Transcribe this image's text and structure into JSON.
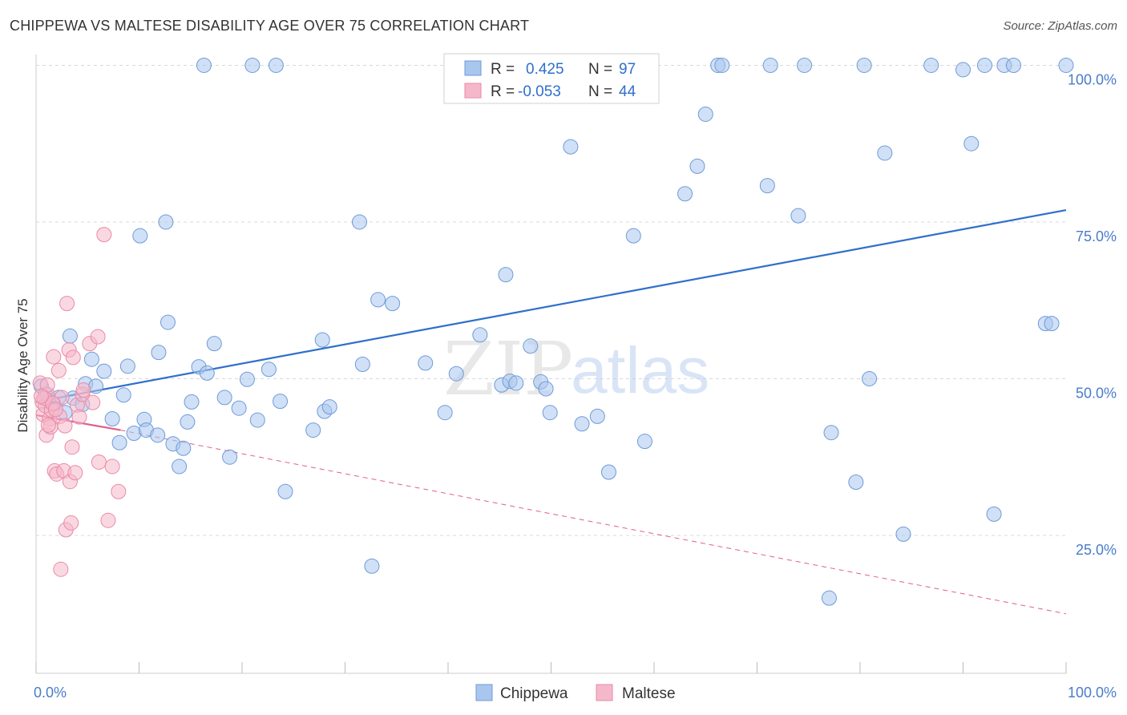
{
  "header": {
    "title": "CHIPPEWA VS MALTESE DISABILITY AGE OVER 75 CORRELATION CHART",
    "source": "Source: ZipAtlas.com"
  },
  "watermark": {
    "zip": "ZIP",
    "atlas": "atlas"
  },
  "colors": {
    "blue_fill": "#a9c6ee",
    "blue_stroke": "#6f9bd8",
    "blue_line": "#2f6fcc",
    "pink_fill": "#f5b8cb",
    "pink_stroke": "#e98aa8",
    "pink_line": "#e0608a",
    "tick_label": "#4a7cc9",
    "grid": "#d8d8d8"
  },
  "chart_data": {
    "type": "scatter",
    "title": "CHIPPEWA VS MALTESE DISABILITY AGE OVER 75 CORRELATION CHART",
    "xlabel": "",
    "ylabel": "Disability Age Over 75",
    "xlim": [
      0,
      100
    ],
    "ylim": [
      3,
      103
    ],
    "x_tick_labels": [
      {
        "value": 0,
        "label": "0.0%"
      },
      {
        "value": 100,
        "label": "100.0%"
      }
    ],
    "y_tick_labels": [
      {
        "value": 25,
        "label": "25.0%"
      },
      {
        "value": 50,
        "label": "50.0%"
      },
      {
        "value": 75,
        "label": "75.0%"
      },
      {
        "value": 100,
        "label": "100.0%"
      }
    ],
    "grid": true,
    "legend_position": "top-center",
    "stats": [
      {
        "series": "Chippewa",
        "r_label": "R =",
        "r": "0.425",
        "n_label": "N =",
        "n": "97"
      },
      {
        "series": "Maltese",
        "r_label": "R =",
        "r": "-0.053",
        "n_label": "N =",
        "n": "44"
      }
    ],
    "series": [
      {
        "name": "Chippewa",
        "color": "#a9c6ee",
        "trend": {
          "x": [
            0,
            100
          ],
          "y": [
            46.3,
            76.9
          ],
          "style": "solid"
        },
        "points": [
          [
            0.5,
            48.8
          ],
          [
            0.9,
            47.5
          ],
          [
            1.3,
            46.5
          ],
          [
            1.7,
            46.0
          ],
          [
            2.2,
            47.0
          ],
          [
            2.8,
            44.6
          ],
          [
            3.3,
            56.8
          ],
          [
            3.6,
            46.9
          ],
          [
            4.5,
            45.9
          ],
          [
            4.8,
            49.2
          ],
          [
            5.4,
            53.1
          ],
          [
            5.8,
            48.8
          ],
          [
            6.6,
            51.2
          ],
          [
            7.4,
            43.6
          ],
          [
            8.1,
            39.8
          ],
          [
            8.5,
            47.4
          ],
          [
            8.9,
            52.0
          ],
          [
            9.5,
            41.3
          ],
          [
            10.1,
            72.8
          ],
          [
            10.5,
            43.5
          ],
          [
            10.7,
            41.8
          ],
          [
            11.8,
            41.0
          ],
          [
            11.9,
            54.2
          ],
          [
            12.6,
            75.0
          ],
          [
            12.8,
            59.0
          ],
          [
            13.3,
            39.6
          ],
          [
            13.9,
            36.0
          ],
          [
            14.3,
            38.9
          ],
          [
            14.7,
            43.1
          ],
          [
            15.1,
            46.3
          ],
          [
            15.8,
            51.9
          ],
          [
            16.3,
            100.0
          ],
          [
            16.6,
            50.9
          ],
          [
            17.3,
            55.6
          ],
          [
            18.3,
            47.0
          ],
          [
            18.8,
            37.5
          ],
          [
            19.7,
            45.3
          ],
          [
            20.5,
            49.9
          ],
          [
            21.0,
            100.0
          ],
          [
            21.5,
            43.4
          ],
          [
            22.6,
            51.5
          ],
          [
            23.3,
            100.0
          ],
          [
            23.7,
            46.4
          ],
          [
            24.2,
            32.0
          ],
          [
            26.9,
            41.8
          ],
          [
            27.8,
            56.2
          ],
          [
            28.0,
            44.8
          ],
          [
            28.5,
            45.5
          ],
          [
            31.4,
            75.0
          ],
          [
            31.7,
            52.3
          ],
          [
            32.6,
            20.1
          ],
          [
            33.2,
            62.6
          ],
          [
            34.6,
            62.0
          ],
          [
            37.8,
            52.5
          ],
          [
            39.7,
            44.6
          ],
          [
            40.8,
            50.8
          ],
          [
            43.1,
            57.0
          ],
          [
            45.2,
            49.0
          ],
          [
            45.6,
            66.6
          ],
          [
            46.0,
            49.6
          ],
          [
            46.6,
            49.3
          ],
          [
            48.0,
            55.2
          ],
          [
            49.0,
            49.5
          ],
          [
            49.5,
            48.4
          ],
          [
            49.9,
            44.6
          ],
          [
            51.9,
            87.0
          ],
          [
            53.0,
            42.8
          ],
          [
            54.5,
            44.0
          ],
          [
            55.6,
            35.1
          ],
          [
            58.0,
            72.8
          ],
          [
            59.1,
            40.0
          ],
          [
            63.0,
            79.5
          ],
          [
            64.2,
            83.9
          ],
          [
            65.0,
            92.2
          ],
          [
            66.2,
            100.0
          ],
          [
            66.6,
            100.0
          ],
          [
            71.0,
            80.8
          ],
          [
            71.3,
            100.0
          ],
          [
            74.0,
            76.0
          ],
          [
            74.6,
            100.0
          ],
          [
            77.0,
            15.0
          ],
          [
            77.2,
            41.4
          ],
          [
            80.4,
            100.0
          ],
          [
            80.9,
            50.0
          ],
          [
            79.6,
            33.5
          ],
          [
            82.4,
            86.0
          ],
          [
            84.2,
            25.2
          ],
          [
            86.9,
            100.0
          ],
          [
            90.0,
            99.3
          ],
          [
            90.8,
            87.5
          ],
          [
            92.1,
            100.0
          ],
          [
            93.0,
            28.4
          ],
          [
            94.0,
            100.0
          ],
          [
            98.0,
            58.8
          ],
          [
            98.6,
            58.8
          ],
          [
            100.0,
            100.0
          ],
          [
            94.9,
            100.0
          ]
        ]
      },
      {
        "name": "Maltese",
        "color": "#f5b8cb",
        "trend": {
          "x": [
            0,
            8.2,
            100
          ],
          "y": [
            44.2,
            41.8,
            12.5
          ],
          "style": "solid-then-dashed"
        },
        "points": [
          [
            0.4,
            49.3
          ],
          [
            0.6,
            46.3
          ],
          [
            0.7,
            44.3
          ],
          [
            0.9,
            45.7
          ],
          [
            1.0,
            41.0
          ],
          [
            1.1,
            47.5
          ],
          [
            1.3,
            43.6
          ],
          [
            1.4,
            42.3
          ],
          [
            1.5,
            45.0
          ],
          [
            1.7,
            53.5
          ],
          [
            1.8,
            35.3
          ],
          [
            2.0,
            34.8
          ],
          [
            2.2,
            51.3
          ],
          [
            2.3,
            44.0
          ],
          [
            2.5,
            47.0
          ],
          [
            2.7,
            35.3
          ],
          [
            2.8,
            42.5
          ],
          [
            2.9,
            25.9
          ],
          [
            3.0,
            62.0
          ],
          [
            3.2,
            54.6
          ],
          [
            3.3,
            33.6
          ],
          [
            3.4,
            27.0
          ],
          [
            3.5,
            39.1
          ],
          [
            3.6,
            53.4
          ],
          [
            3.8,
            35.0
          ],
          [
            4.0,
            45.8
          ],
          [
            4.2,
            43.9
          ],
          [
            4.5,
            47.5
          ],
          [
            4.6,
            48.2
          ],
          [
            5.2,
            55.6
          ],
          [
            5.5,
            46.2
          ],
          [
            6.0,
            56.7
          ],
          [
            6.1,
            36.7
          ],
          [
            6.6,
            73.0
          ],
          [
            7.0,
            27.4
          ],
          [
            7.4,
            36.0
          ],
          [
            8.0,
            32.0
          ],
          [
            1.1,
            49.0
          ],
          [
            0.8,
            46.9
          ],
          [
            1.6,
            46.1
          ],
          [
            2.4,
            19.6
          ],
          [
            1.9,
            45.1
          ],
          [
            0.5,
            47.2
          ],
          [
            1.2,
            42.6
          ]
        ]
      }
    ]
  }
}
